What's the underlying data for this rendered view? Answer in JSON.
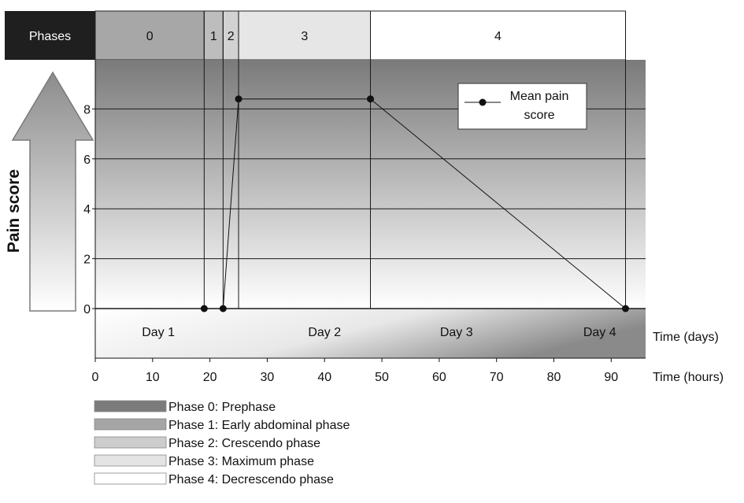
{
  "chart_data": {
    "type": "line",
    "phases_header": "Phases",
    "phases": [
      {
        "label": "0",
        "start": 0,
        "end": 19,
        "color": "#a7a7a7"
      },
      {
        "label": "1",
        "start": 19,
        "end": 22.3,
        "color": "#bdbdbd"
      },
      {
        "label": "2",
        "start": 22.3,
        "end": 25,
        "color": "#d2d2d2"
      },
      {
        "label": "3",
        "start": 25,
        "end": 48,
        "color": "#e6e6e6"
      },
      {
        "label": "4",
        "start": 48,
        "end": 92.5,
        "color": "#ffffff"
      }
    ],
    "series": [
      {
        "name": "Mean pain score",
        "x": [
          19,
          22.3,
          25,
          48,
          92.5
        ],
        "y": [
          0,
          0,
          8.4,
          8.4,
          0
        ]
      }
    ],
    "legend_label_lines": [
      "Mean pain",
      "score"
    ],
    "legend_position": "top-right",
    "ylabel": "Pain score",
    "xlabel_hours": "Time (hours)",
    "xlabel_days": "Time (days)",
    "xlim": [
      0,
      96
    ],
    "ylim": [
      -2,
      9.5
    ],
    "x_ticks": [
      0,
      10,
      20,
      30,
      40,
      50,
      60,
      70,
      80,
      90
    ],
    "y_ticks": [
      0,
      2,
      4,
      6,
      8
    ],
    "days": [
      "Day 1",
      "Day 2",
      "Day 3",
      "Day 4"
    ],
    "phase_legend": [
      {
        "label": "Phase 0: Prephase",
        "color": "#7b7b7b"
      },
      {
        "label": "Phase 1: Early abdominal phase",
        "color": "#a5a5a5"
      },
      {
        "label": "Phase 2: Crescendo phase",
        "color": "#cdcdcd"
      },
      {
        "label": "Phase 3: Maximum phase",
        "color": "#e4e4e4"
      },
      {
        "label": "Phase 4: Decrescendo phase",
        "color": "#ffffff"
      }
    ],
    "grid": true
  }
}
